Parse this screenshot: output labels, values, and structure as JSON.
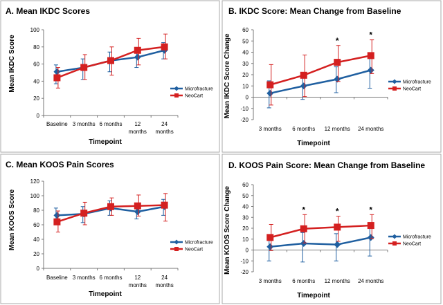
{
  "colors": {
    "microfracture": "#1f5fa0",
    "neocart": "#d42020",
    "axis": "#777777",
    "panel_border": "#aaaaaa"
  },
  "chart_data": [
    {
      "type": "line",
      "title": "A. Mean IKDC Scores",
      "xlabel": "Timepoint",
      "ylabel": "Mean IKDC Score",
      "categories": [
        [
          "Baseline"
        ],
        [
          "3 months"
        ],
        [
          "6 months"
        ],
        [
          "12",
          "months"
        ],
        [
          "24",
          "months"
        ]
      ],
      "ylim": [
        0,
        100
      ],
      "ystep": 20,
      "yticks": [
        "0",
        "20",
        "40",
        "60",
        "80",
        "100"
      ],
      "legend_position": "right",
      "series": [
        {
          "name": "Microfracture",
          "values": [
            51,
            56,
            64,
            68,
            76
          ],
          "err_up": [
            8,
            10,
            10,
            11,
            9
          ],
          "err_down": [
            14,
            14,
            13,
            12,
            10
          ]
        },
        {
          "name": "NeoCart",
          "values": [
            44,
            56,
            64,
            76,
            80
          ],
          "err_up": [
            12,
            15,
            16,
            14,
            15
          ],
          "err_down": [
            12,
            14,
            17,
            17,
            14
          ]
        }
      ],
      "significance": []
    },
    {
      "type": "line",
      "title": "B. IKDC Score: Mean Change from Baseline",
      "xlabel": "Timepoint",
      "ylabel": "Mean IKDC Score Change",
      "categories": [
        [
          "3 months"
        ],
        [
          "6 months"
        ],
        [
          "12 months"
        ],
        [
          "24 months"
        ]
      ],
      "ylim": [
        -20,
        60
      ],
      "ystep": 10,
      "yticks": [
        "-20",
        "-10",
        "0",
        "10",
        "20",
        "30",
        "40",
        "50",
        "60"
      ],
      "legend_position": "right",
      "series": [
        {
          "name": "Microfracture",
          "values": [
            3.5,
            10,
            16,
            24
          ],
          "err_up": [
            11,
            11,
            11,
            11
          ],
          "err_down": [
            13,
            12,
            12,
            16
          ]
        },
        {
          "name": "NeoCart",
          "values": [
            11,
            19.5,
            31,
            37
          ],
          "err_up": [
            18,
            18,
            15,
            14
          ],
          "err_down": [
            18,
            19,
            17,
            16
          ]
        }
      ],
      "significance": [
        "",
        "",
        "*",
        "*"
      ]
    },
    {
      "type": "line",
      "title": "C. Mean KOOS Pain Scores",
      "xlabel": "Timepoint",
      "ylabel": "Mean KOOS Score",
      "categories": [
        [
          "Baseline"
        ],
        [
          "3 months"
        ],
        [
          "6 months"
        ],
        [
          "12",
          "months"
        ],
        [
          "24",
          "months"
        ]
      ],
      "ylim": [
        0,
        120
      ],
      "ystep": 20,
      "yticks": [
        "0",
        "20",
        "40",
        "60",
        "80",
        "100",
        "120"
      ],
      "legend_position": "right",
      "series": [
        {
          "name": "Microfracture",
          "values": [
            73,
            75,
            83,
            78,
            85
          ],
          "err_up": [
            10,
            10,
            10,
            10,
            10
          ],
          "err_down": [
            10,
            12,
            10,
            10,
            12
          ]
        },
        {
          "name": "NeoCart",
          "values": [
            64,
            76,
            85,
            86,
            87
          ],
          "err_up": [
            15,
            15,
            12,
            15,
            16
          ],
          "err_down": [
            14,
            16,
            12,
            14,
            22
          ]
        }
      ],
      "significance": []
    },
    {
      "type": "line",
      "title": "D. KOOS Pain Score:  Mean Change from Baseline",
      "xlabel": "Timepoint",
      "ylabel": "Mean KOOS Score Change",
      "categories": [
        [
          "3 months"
        ],
        [
          "6 months"
        ],
        [
          "12 months"
        ],
        [
          "24 months"
        ]
      ],
      "ylim": [
        -20,
        60
      ],
      "ystep": 10,
      "yticks": [
        "-20",
        "-10",
        "0",
        "10",
        "20",
        "30",
        "40",
        "50",
        "60"
      ],
      "legend_position": "right",
      "series": [
        {
          "name": "Microfracture",
          "values": [
            3,
            6,
            5,
            11.5
          ],
          "err_up": [
            10,
            10,
            10,
            10
          ],
          "err_down": [
            13,
            17,
            15,
            17
          ]
        },
        {
          "name": "NeoCart",
          "values": [
            11.5,
            19.5,
            21,
            22.5
          ],
          "err_up": [
            12,
            13,
            10,
            10
          ],
          "err_down": [
            12,
            13,
            13,
            12
          ]
        }
      ],
      "significance": [
        "",
        "*",
        "*",
        "*"
      ]
    }
  ]
}
